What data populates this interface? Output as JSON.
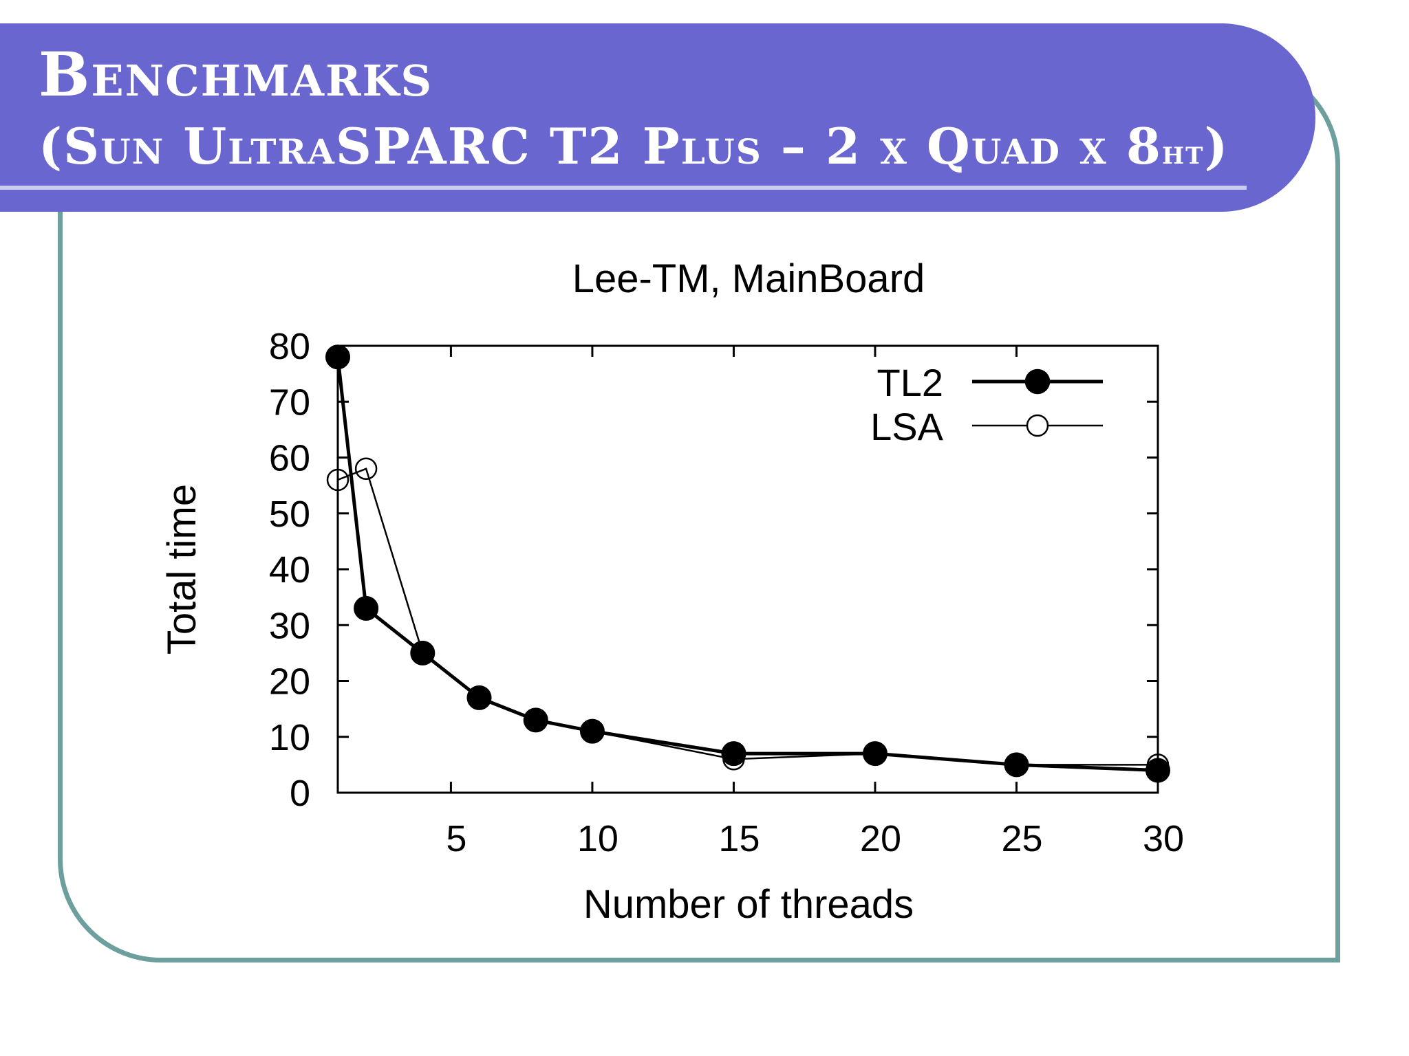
{
  "slide": {
    "title_line1": "Benchmarks",
    "title_line2_main": "(Sun UltraSPARC T2 Plus – 2 x Quad x 8",
    "title_line2_sub": "ht",
    "title_line2_end": ")",
    "colors": {
      "title_bar": "#6967cf",
      "frame_border": "#6c9f9e",
      "title_text": "#ffffff"
    }
  },
  "chart_data": {
    "type": "line",
    "title": "Lee-TM, MainBoard",
    "xlabel": "Number of threads",
    "ylabel": "Total time",
    "xlim": [
      1,
      30
    ],
    "ylim": [
      0,
      80
    ],
    "xticks": [
      5,
      10,
      15,
      20,
      25,
      30
    ],
    "yticks": [
      0,
      10,
      20,
      30,
      40,
      50,
      60,
      70,
      80
    ],
    "grid": false,
    "legend_position": "top-right",
    "series": [
      {
        "name": "TL2",
        "marker": "filled-circle",
        "x": [
          1,
          2,
          4,
          6,
          8,
          10,
          15,
          20,
          25,
          30
        ],
        "y": [
          78,
          33,
          25,
          17,
          13,
          11,
          7,
          7,
          5,
          4
        ]
      },
      {
        "name": "LSA",
        "marker": "open-circle",
        "x": [
          1,
          2,
          4,
          6,
          8,
          10,
          15,
          20,
          25,
          30
        ],
        "y": [
          56,
          58,
          25,
          17,
          13,
          11,
          6,
          7,
          5,
          5
        ]
      }
    ]
  }
}
